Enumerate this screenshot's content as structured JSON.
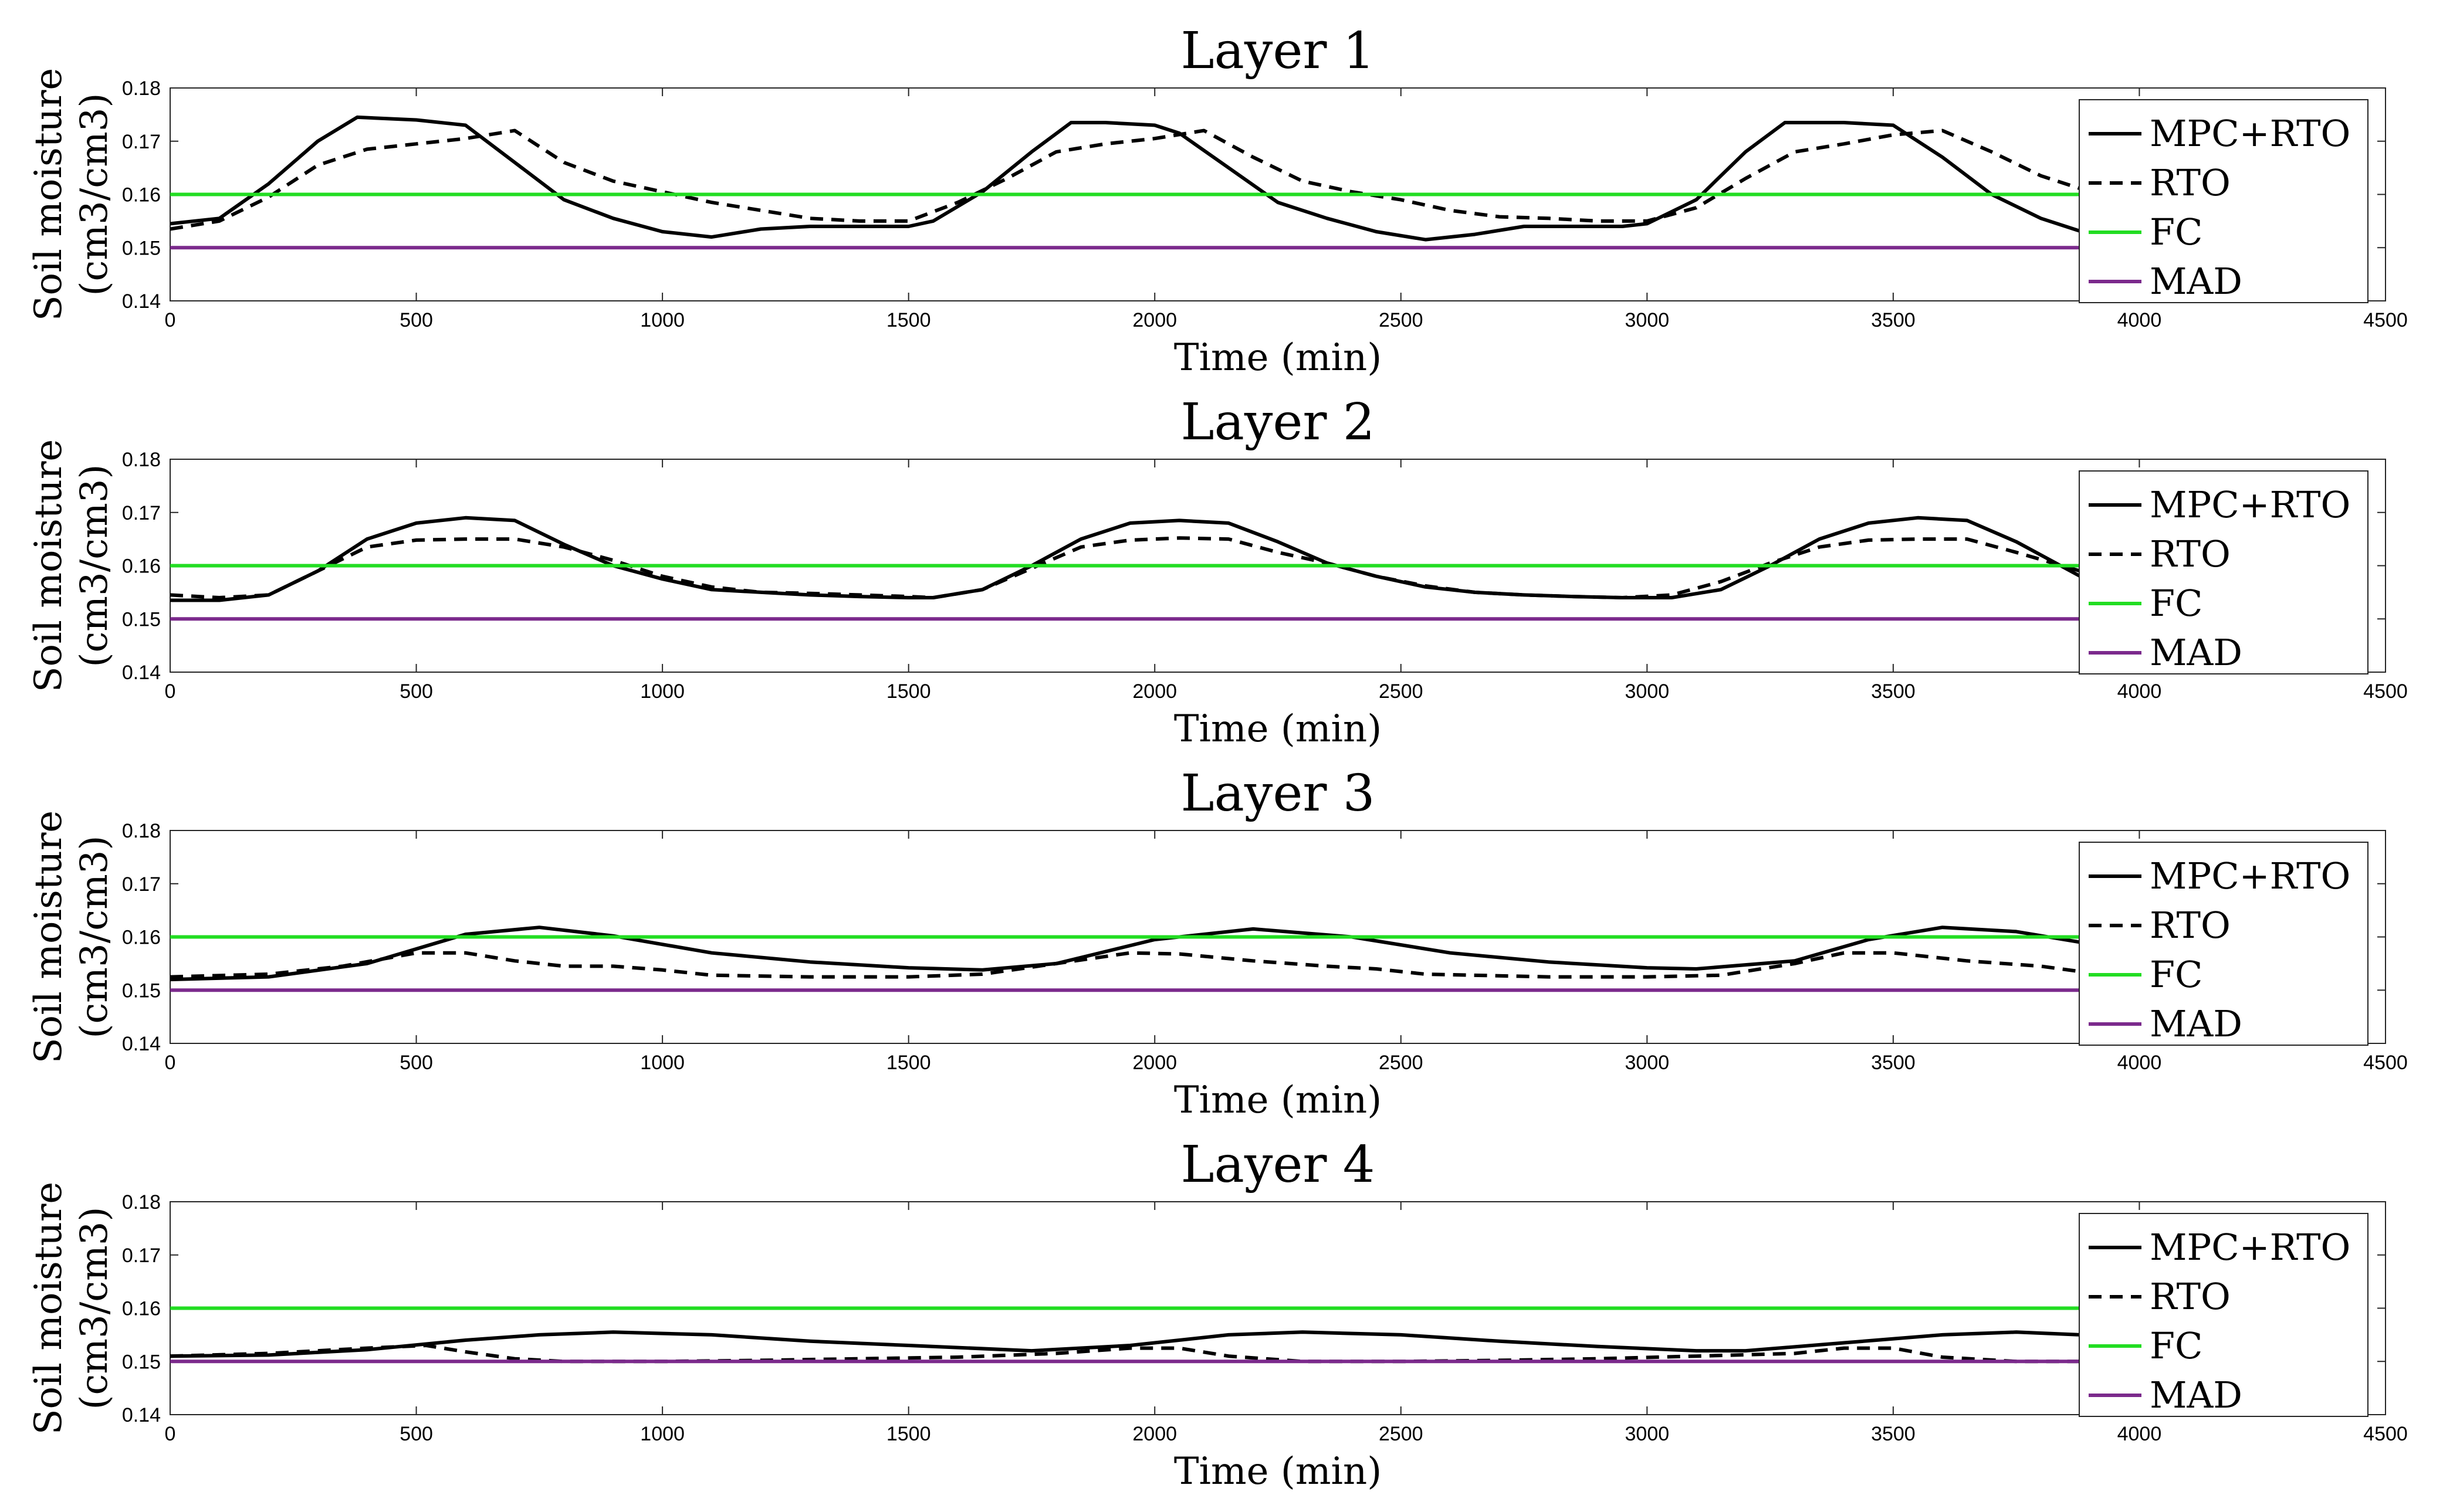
{
  "chart_data": [
    {
      "type": "line",
      "title": "Layer 1",
      "xlabel": "Time (min)",
      "ylabel": "Soil moisture",
      "ylabel_unit": "(cm3/cm3)",
      "xlim": [
        0,
        4500
      ],
      "ylim": [
        0.14,
        0.18
      ],
      "xticks": [
        "0",
        "500",
        "1000",
        "1500",
        "2000",
        "2500",
        "3000",
        "3500",
        "4000",
        "4500"
      ],
      "yticks": [
        "0.14",
        "0.15",
        "0.16",
        "0.17",
        "0.18"
      ],
      "series": [
        {
          "name": "MPC+RTO",
          "style": "solid",
          "color": "#000000",
          "x": [
            0,
            100,
            200,
            300,
            380,
            500,
            600,
            700,
            800,
            900,
            1000,
            1100,
            1200,
            1300,
            1400,
            1500,
            1550,
            1650,
            1750,
            1830,
            1900,
            2000,
            2050,
            2150,
            2250,
            2350,
            2450,
            2550,
            2650,
            2750,
            2850,
            2950,
            3000,
            3100,
            3200,
            3280,
            3400,
            3500,
            3600,
            3700,
            3800,
            3900
          ],
          "y": [
            0.1545,
            0.1555,
            0.162,
            0.17,
            0.1745,
            0.174,
            0.173,
            0.166,
            0.159,
            0.1555,
            0.153,
            0.152,
            0.1535,
            0.154,
            0.154,
            0.154,
            0.155,
            0.1605,
            0.168,
            0.1735,
            0.1735,
            0.173,
            0.1715,
            0.165,
            0.1585,
            0.1555,
            0.153,
            0.1515,
            0.1525,
            0.154,
            0.154,
            0.154,
            0.1545,
            0.159,
            0.168,
            0.1735,
            0.1735,
            0.173,
            0.167,
            0.16,
            0.1555,
            0.1525
          ]
        },
        {
          "name": "RTO",
          "style": "dashed",
          "color": "#000000",
          "x": [
            0,
            100,
            200,
            300,
            400,
            500,
            600,
            700,
            800,
            900,
            1000,
            1100,
            1200,
            1300,
            1400,
            1500,
            1600,
            1700,
            1800,
            1900,
            2000,
            2100,
            2200,
            2300,
            2400,
            2500,
            2600,
            2700,
            2800,
            2900,
            3000,
            3100,
            3200,
            3300,
            3400,
            3500,
            3600,
            3700,
            3800,
            3900
          ],
          "y": [
            0.1535,
            0.155,
            0.1595,
            0.1655,
            0.1685,
            0.1695,
            0.1705,
            0.172,
            0.166,
            0.1625,
            0.1605,
            0.1585,
            0.157,
            0.1555,
            0.155,
            0.155,
            0.1585,
            0.163,
            0.168,
            0.1695,
            0.1705,
            0.172,
            0.167,
            0.1625,
            0.1605,
            0.159,
            0.157,
            0.1558,
            0.1555,
            0.155,
            0.155,
            0.1575,
            0.163,
            0.168,
            0.1695,
            0.1712,
            0.172,
            0.168,
            0.1635,
            0.1605
          ]
        },
        {
          "name": "FC",
          "style": "solid",
          "color": "#22dd22",
          "x": [
            0,
            3880
          ],
          "y": [
            0.16,
            0.16
          ]
        },
        {
          "name": "MAD",
          "style": "solid",
          "color": "#7b2a8c",
          "x": [
            0,
            3880
          ],
          "y": [
            0.15,
            0.15
          ]
        }
      ]
    },
    {
      "type": "line",
      "title": "Layer 2",
      "xlabel": "Time (min)",
      "ylabel": "Soil moisture",
      "ylabel_unit": "(cm3/cm3)",
      "xlim": [
        0,
        4500
      ],
      "ylim": [
        0.14,
        0.18
      ],
      "xticks": [
        "0",
        "500",
        "1000",
        "1500",
        "2000",
        "2500",
        "3000",
        "3500",
        "4000",
        "4500"
      ],
      "yticks": [
        "0.14",
        "0.15",
        "0.16",
        "0.17",
        "0.18"
      ],
      "series": [
        {
          "name": "MPC+RTO",
          "style": "solid",
          "color": "#000000",
          "x": [
            0,
            100,
            200,
            300,
            400,
            500,
            600,
            700,
            800,
            900,
            1000,
            1100,
            1200,
            1300,
            1400,
            1500,
            1550,
            1650,
            1750,
            1850,
            1950,
            2050,
            2150,
            2250,
            2350,
            2450,
            2550,
            2650,
            2750,
            2850,
            2950,
            3050,
            3150,
            3250,
            3350,
            3450,
            3550,
            3650,
            3750,
            3880
          ],
          "y": [
            0.1535,
            0.1535,
            0.1545,
            0.159,
            0.165,
            0.168,
            0.169,
            0.1685,
            0.164,
            0.16,
            0.1575,
            0.1555,
            0.155,
            0.1545,
            0.1542,
            0.154,
            0.154,
            0.1555,
            0.16,
            0.165,
            0.168,
            0.1685,
            0.168,
            0.1645,
            0.1605,
            0.158,
            0.156,
            0.155,
            0.1545,
            0.1542,
            0.154,
            0.154,
            0.1555,
            0.16,
            0.165,
            0.168,
            0.169,
            0.1685,
            0.1645,
            0.158
          ]
        },
        {
          "name": "RTO",
          "style": "dashed",
          "color": "#000000",
          "x": [
            0,
            100,
            200,
            300,
            400,
            500,
            600,
            700,
            800,
            900,
            1000,
            1100,
            1200,
            1300,
            1400,
            1500,
            1550,
            1650,
            1750,
            1850,
            1950,
            2050,
            2150,
            2250,
            2350,
            2450,
            2550,
            2650,
            2750,
            2850,
            2950,
            3050,
            3150,
            3250,
            3350,
            3450,
            3550,
            3650,
            3750,
            3880
          ],
          "y": [
            0.1545,
            0.154,
            0.1545,
            0.159,
            0.1635,
            0.1648,
            0.165,
            0.165,
            0.1635,
            0.161,
            0.158,
            0.156,
            0.155,
            0.1548,
            0.1545,
            0.1542,
            0.154,
            0.1555,
            0.1595,
            0.1635,
            0.1648,
            0.1652,
            0.165,
            0.1625,
            0.1605,
            0.158,
            0.1562,
            0.155,
            0.1545,
            0.1542,
            0.154,
            0.1545,
            0.157,
            0.1605,
            0.1635,
            0.1648,
            0.165,
            0.165,
            0.1625,
            0.159
          ]
        },
        {
          "name": "FC",
          "style": "solid",
          "color": "#22dd22",
          "x": [
            0,
            3880
          ],
          "y": [
            0.16,
            0.16
          ]
        },
        {
          "name": "MAD",
          "style": "solid",
          "color": "#7b2a8c",
          "x": [
            0,
            3880
          ],
          "y": [
            0.15,
            0.15
          ]
        }
      ]
    },
    {
      "type": "line",
      "title": "Layer 3",
      "xlabel": "Time (min)",
      "ylabel": "Soil moisture",
      "ylabel_unit": "(cm3/cm3)",
      "xlim": [
        0,
        4500
      ],
      "ylim": [
        0.14,
        0.18
      ],
      "xticks": [
        "0",
        "500",
        "1000",
        "1500",
        "2000",
        "2500",
        "3000",
        "3500",
        "4000",
        "4500"
      ],
      "yticks": [
        "0.14",
        "0.15",
        "0.16",
        "0.17",
        "0.18"
      ],
      "series": [
        {
          "name": "MPC+RTO",
          "style": "solid",
          "color": "#000000",
          "x": [
            0,
            200,
            400,
            600,
            750,
            900,
            1100,
            1300,
            1500,
            1650,
            1800,
            2000,
            2200,
            2400,
            2600,
            2800,
            3000,
            3100,
            3300,
            3450,
            3600,
            3750,
            3880
          ],
          "y": [
            0.152,
            0.1525,
            0.155,
            0.1605,
            0.1618,
            0.1602,
            0.157,
            0.1553,
            0.1542,
            0.1538,
            0.155,
            0.1595,
            0.1615,
            0.16,
            0.157,
            0.1553,
            0.1542,
            0.154,
            0.1555,
            0.1595,
            0.1618,
            0.161,
            0.159
          ]
        },
        {
          "name": "RTO",
          "style": "dashed",
          "color": "#000000",
          "x": [
            0,
            200,
            350,
            500,
            600,
            700,
            800,
            900,
            1000,
            1100,
            1300,
            1500,
            1650,
            1800,
            1950,
            2050,
            2200,
            2350,
            2450,
            2550,
            2800,
            3000,
            3150,
            3300,
            3400,
            3500,
            3650,
            3800,
            3880
          ],
          "y": [
            0.1525,
            0.153,
            0.1545,
            0.157,
            0.157,
            0.1555,
            0.1545,
            0.1545,
            0.1538,
            0.1528,
            0.1525,
            0.1525,
            0.153,
            0.155,
            0.157,
            0.1568,
            0.1555,
            0.1545,
            0.154,
            0.153,
            0.1525,
            0.1525,
            0.1528,
            0.155,
            0.157,
            0.157,
            0.1555,
            0.1545,
            0.1535
          ]
        },
        {
          "name": "FC",
          "style": "solid",
          "color": "#22dd22",
          "x": [
            0,
            3880
          ],
          "y": [
            0.16,
            0.16
          ]
        },
        {
          "name": "MAD",
          "style": "solid",
          "color": "#7b2a8c",
          "x": [
            0,
            3880
          ],
          "y": [
            0.15,
            0.15
          ]
        }
      ]
    },
    {
      "type": "line",
      "title": "Layer 4",
      "xlabel": "Time (min)",
      "ylabel": "Soil moisture",
      "ylabel_unit": "(cm3/cm3)",
      "xlim": [
        0,
        4500
      ],
      "ylim": [
        0.14,
        0.18
      ],
      "xticks": [
        "0",
        "500",
        "1000",
        "1500",
        "2000",
        "2500",
        "3000",
        "3500",
        "4000",
        "4500"
      ],
      "yticks": [
        "0.14",
        "0.15",
        "0.16",
        "0.17",
        "0.18"
      ],
      "series": [
        {
          "name": "MPC+RTO",
          "style": "solid",
          "color": "#000000",
          "x": [
            0,
            200,
            400,
            600,
            750,
            900,
            1100,
            1300,
            1500,
            1750,
            1950,
            2150,
            2300,
            2500,
            2700,
            2900,
            3100,
            3200,
            3400,
            3600,
            3750,
            3880
          ],
          "y": [
            0.151,
            0.1512,
            0.1522,
            0.154,
            0.155,
            0.1555,
            0.155,
            0.1538,
            0.153,
            0.152,
            0.153,
            0.155,
            0.1555,
            0.155,
            0.1538,
            0.1528,
            0.152,
            0.152,
            0.1535,
            0.155,
            0.1555,
            0.155
          ]
        },
        {
          "name": "RTO",
          "style": "dashed",
          "color": "#000000",
          "x": [
            0,
            200,
            400,
            520,
            600,
            700,
            800,
            1000,
            1200,
            1400,
            1600,
            1800,
            1950,
            2050,
            2150,
            2300,
            2500,
            2700,
            2900,
            3100,
            3300,
            3400,
            3500,
            3600,
            3750,
            3880
          ],
          "y": [
            0.151,
            0.1515,
            0.1525,
            0.153,
            0.1518,
            0.1505,
            0.15,
            0.15,
            0.1502,
            0.1505,
            0.1508,
            0.1515,
            0.1525,
            0.1525,
            0.151,
            0.15,
            0.15,
            0.1502,
            0.1505,
            0.151,
            0.1515,
            0.1525,
            0.1525,
            0.1508,
            0.15,
            0.15
          ]
        },
        {
          "name": "FC",
          "style": "solid",
          "color": "#22dd22",
          "x": [
            0,
            3880
          ],
          "y": [
            0.16,
            0.16
          ]
        },
        {
          "name": "MAD",
          "style": "solid",
          "color": "#7b2a8c",
          "x": [
            0,
            3880
          ],
          "y": [
            0.15,
            0.15
          ]
        }
      ]
    }
  ]
}
